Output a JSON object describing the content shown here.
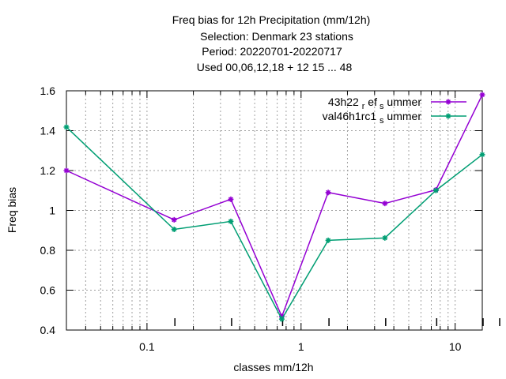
{
  "chart_data": {
    "type": "line",
    "title_lines": [
      "Freq bias  for 12h Precipitation (mm/12h)",
      "Selection: Denmark      23 stations",
      "Period: 20220701-20220717",
      "Used  00,06,12,18  + 12 15 ... 48"
    ],
    "xlabel": "classes mm/12h",
    "ylabel": "Freq bias",
    "x_scale": "log",
    "xlim": [
      0.03,
      15
    ],
    "ylim": [
      0.4,
      1.6
    ],
    "x_ticks": [
      0.1,
      1,
      10
    ],
    "x_tick_labels": [
      "0.1",
      "1",
      "10"
    ],
    "y_ticks": [
      0.4,
      0.6,
      0.8,
      1.0,
      1.2,
      1.4,
      1.6
    ],
    "y_tick_labels": [
      "0.4",
      "0.6",
      "0.8",
      "1",
      "1.2",
      "1.4",
      "1.6"
    ],
    "grid": true,
    "legend_position": "top-right",
    "x": [
      0.03,
      0.15,
      0.35,
      0.75,
      1.5,
      3.5,
      7.5,
      15
    ],
    "series": [
      {
        "name": "43h22_ref_summer",
        "legend_parts": [
          "43h22",
          "ref",
          "s",
          "ummer"
        ],
        "color": "#9400d3",
        "values": [
          1.2,
          0.953,
          1.056,
          0.468,
          1.09,
          1.035,
          1.103,
          1.58
        ]
      },
      {
        "name": "val46h1rc1_summer",
        "legend_parts": [
          "val46h1rc1",
          "s",
          "ummer"
        ],
        "color": "#009e73",
        "values": [
          1.418,
          0.905,
          0.945,
          0.455,
          0.85,
          0.862,
          1.1,
          1.28
        ]
      }
    ]
  }
}
